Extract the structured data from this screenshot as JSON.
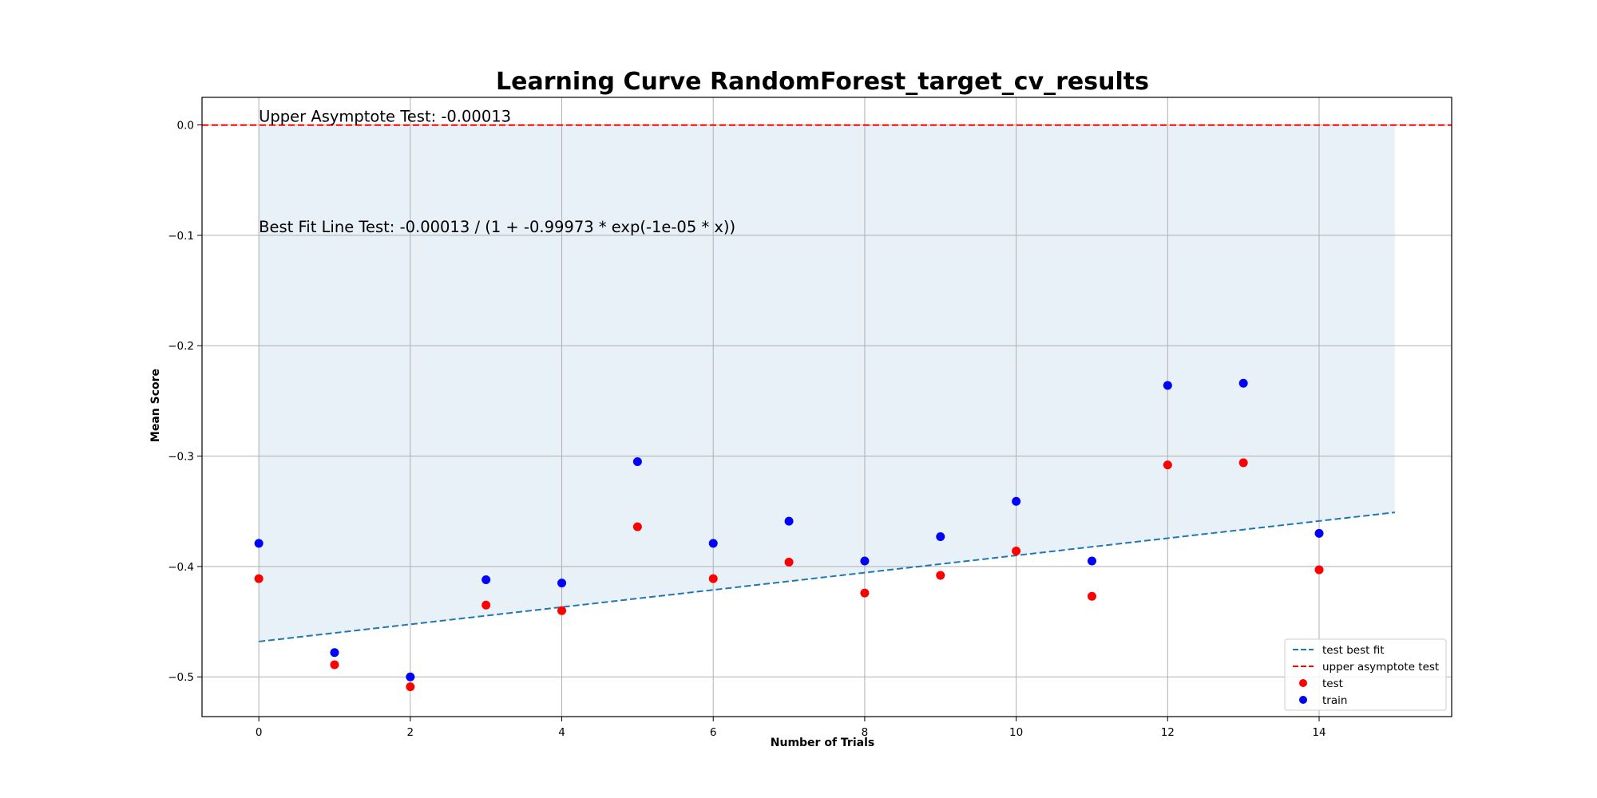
{
  "chart_data": {
    "type": "scatter",
    "title": "Learning Curve RandomForest_target_cv_results",
    "xlabel": "Number of Trials",
    "ylabel": "Mean Score",
    "xlim": [
      -0.75,
      15.75
    ],
    "ylim": [
      -0.536,
      0.025
    ],
    "x_ticks": [
      0,
      2,
      4,
      6,
      8,
      10,
      12,
      14
    ],
    "y_ticks": [
      0.0,
      -0.1,
      -0.2,
      -0.3,
      -0.4,
      -0.5
    ],
    "x_tick_labels": [
      "0",
      "2",
      "4",
      "6",
      "8",
      "10",
      "12",
      "14"
    ],
    "y_tick_labels": [
      "0.0",
      "−0.1",
      "−0.2",
      "−0.3",
      "−0.4",
      "−0.5"
    ],
    "grid": true,
    "legend_position": "lower-right",
    "series": [
      {
        "name": "test",
        "kind": "scatter",
        "color": "#ff0000",
        "x": [
          0,
          1,
          2,
          3,
          4,
          5,
          6,
          7,
          8,
          9,
          10,
          11,
          12,
          13,
          14
        ],
        "y": [
          -0.411,
          -0.489,
          -0.509,
          -0.435,
          -0.44,
          -0.364,
          -0.411,
          -0.396,
          -0.424,
          -0.408,
          -0.386,
          -0.427,
          -0.308,
          -0.306,
          -0.403
        ]
      },
      {
        "name": "train",
        "kind": "scatter",
        "color": "#0000ff",
        "x": [
          0,
          1,
          2,
          3,
          4,
          5,
          6,
          7,
          8,
          9,
          10,
          11,
          12,
          13,
          14
        ],
        "y": [
          -0.379,
          -0.478,
          -0.5,
          -0.412,
          -0.415,
          -0.305,
          -0.379,
          -0.359,
          -0.395,
          -0.373,
          -0.341,
          -0.395,
          -0.236,
          -0.234,
          -0.37
        ]
      },
      {
        "name": "test best fit",
        "kind": "line",
        "style": "dashed",
        "color": "#1f77b4",
        "x": [
          0,
          15
        ],
        "y": [
          -0.468,
          -0.351
        ]
      },
      {
        "name": "upper asymptote test",
        "kind": "hline",
        "style": "dashed",
        "color": "#ff0000",
        "y": -0.00013
      }
    ],
    "fill_region": {
      "x": [
        0,
        15
      ],
      "y_top": -0.00013,
      "y_bottom_line": [
        -0.468,
        -0.351
      ],
      "color": "#e8f0f8"
    },
    "annotations": [
      {
        "text": "Upper Asymptote Test: -0.00013",
        "x": 0,
        "y": 0.003
      },
      {
        "text": "Best Fit Line Test: -0.00013 / (1 + -0.99973 * exp(-1e-05 * x))",
        "x": 0,
        "y": -0.097
      }
    ],
    "legend": [
      "test best fit",
      "upper asymptote test",
      "test",
      "train"
    ]
  }
}
